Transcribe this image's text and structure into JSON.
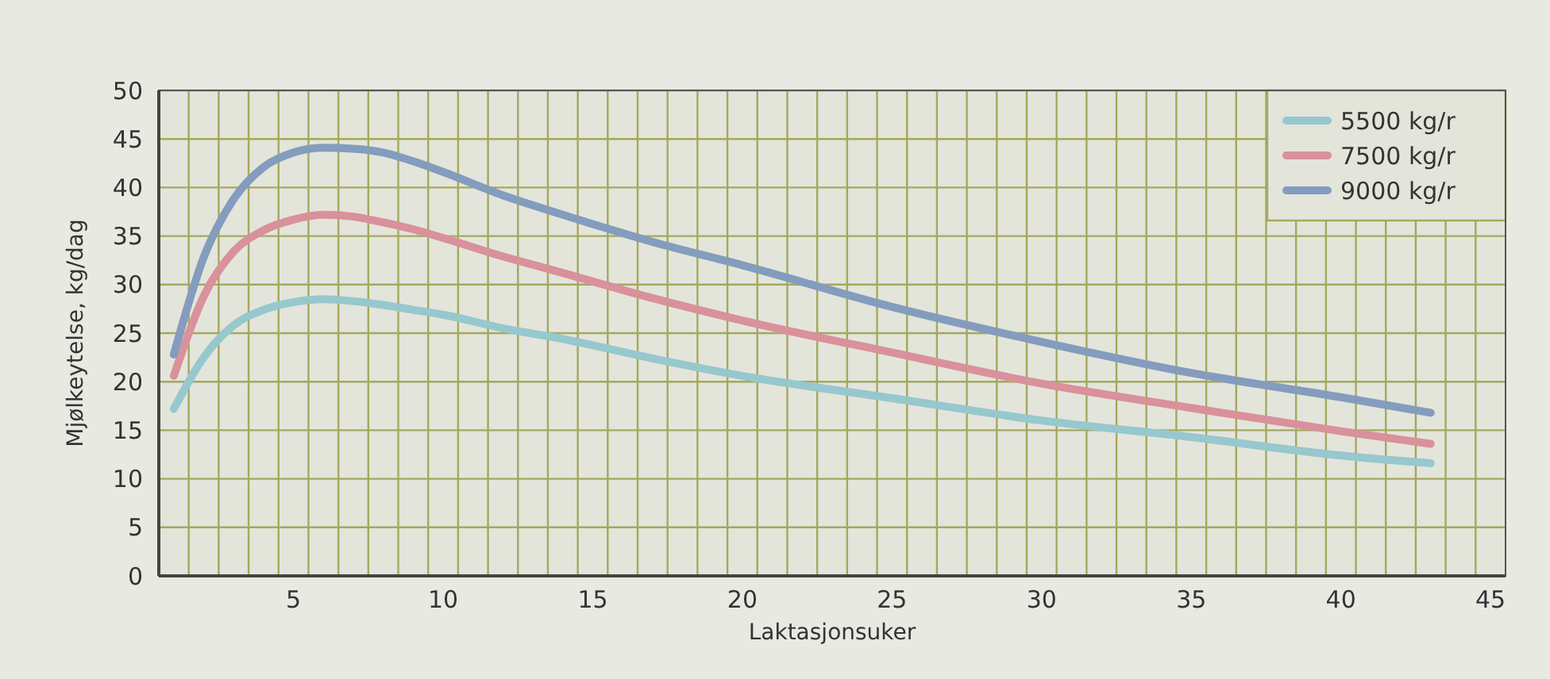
{
  "chart_data": {
    "type": "line",
    "xlabel": "Laktasjonsuker",
    "ylabel": "Mjølkeytelse, kg/dag",
    "x": [
      1,
      2,
      3,
      4,
      5,
      6,
      7,
      8,
      9,
      10,
      12,
      14,
      17,
      20,
      25,
      30,
      35,
      40,
      43
    ],
    "series": [
      {
        "name": "5500 kg/r",
        "color": "#96c8cd",
        "values": [
          17.2,
          22.5,
          25.8,
          27.4,
          28.2,
          28.5,
          28.3,
          27.9,
          27.4,
          26.9,
          25.5,
          24.4,
          22.4,
          20.6,
          18.3,
          16.0,
          14.3,
          12.4,
          11.6
        ]
      },
      {
        "name": "7500 kg/r",
        "color": "#d9919c",
        "values": [
          20.6,
          28.8,
          33.4,
          35.6,
          36.7,
          37.2,
          37.0,
          36.4,
          35.7,
          34.8,
          32.9,
          31.2,
          28.6,
          26.3,
          23.0,
          19.8,
          17.3,
          14.9,
          13.6
        ]
      },
      {
        "name": "9000 kg/r",
        "color": "#849cbd",
        "values": [
          22.8,
          32.8,
          38.8,
          42.1,
          43.6,
          44.1,
          44.0,
          43.6,
          42.7,
          41.6,
          39.2,
          37.2,
          34.4,
          32.0,
          27.7,
          24.1,
          20.9,
          18.4,
          16.8
        ]
      }
    ],
    "xlim": [
      0.5,
      45.5
    ],
    "xticks": [
      5,
      10,
      15,
      20,
      25,
      30,
      35,
      40,
      45
    ],
    "ylim": [
      0,
      50
    ],
    "yticks": [
      0,
      5,
      10,
      15,
      20,
      25,
      30,
      35,
      40,
      45,
      50
    ],
    "grid": true,
    "legend": "top right",
    "marker": "none",
    "line_style": "solid"
  }
}
